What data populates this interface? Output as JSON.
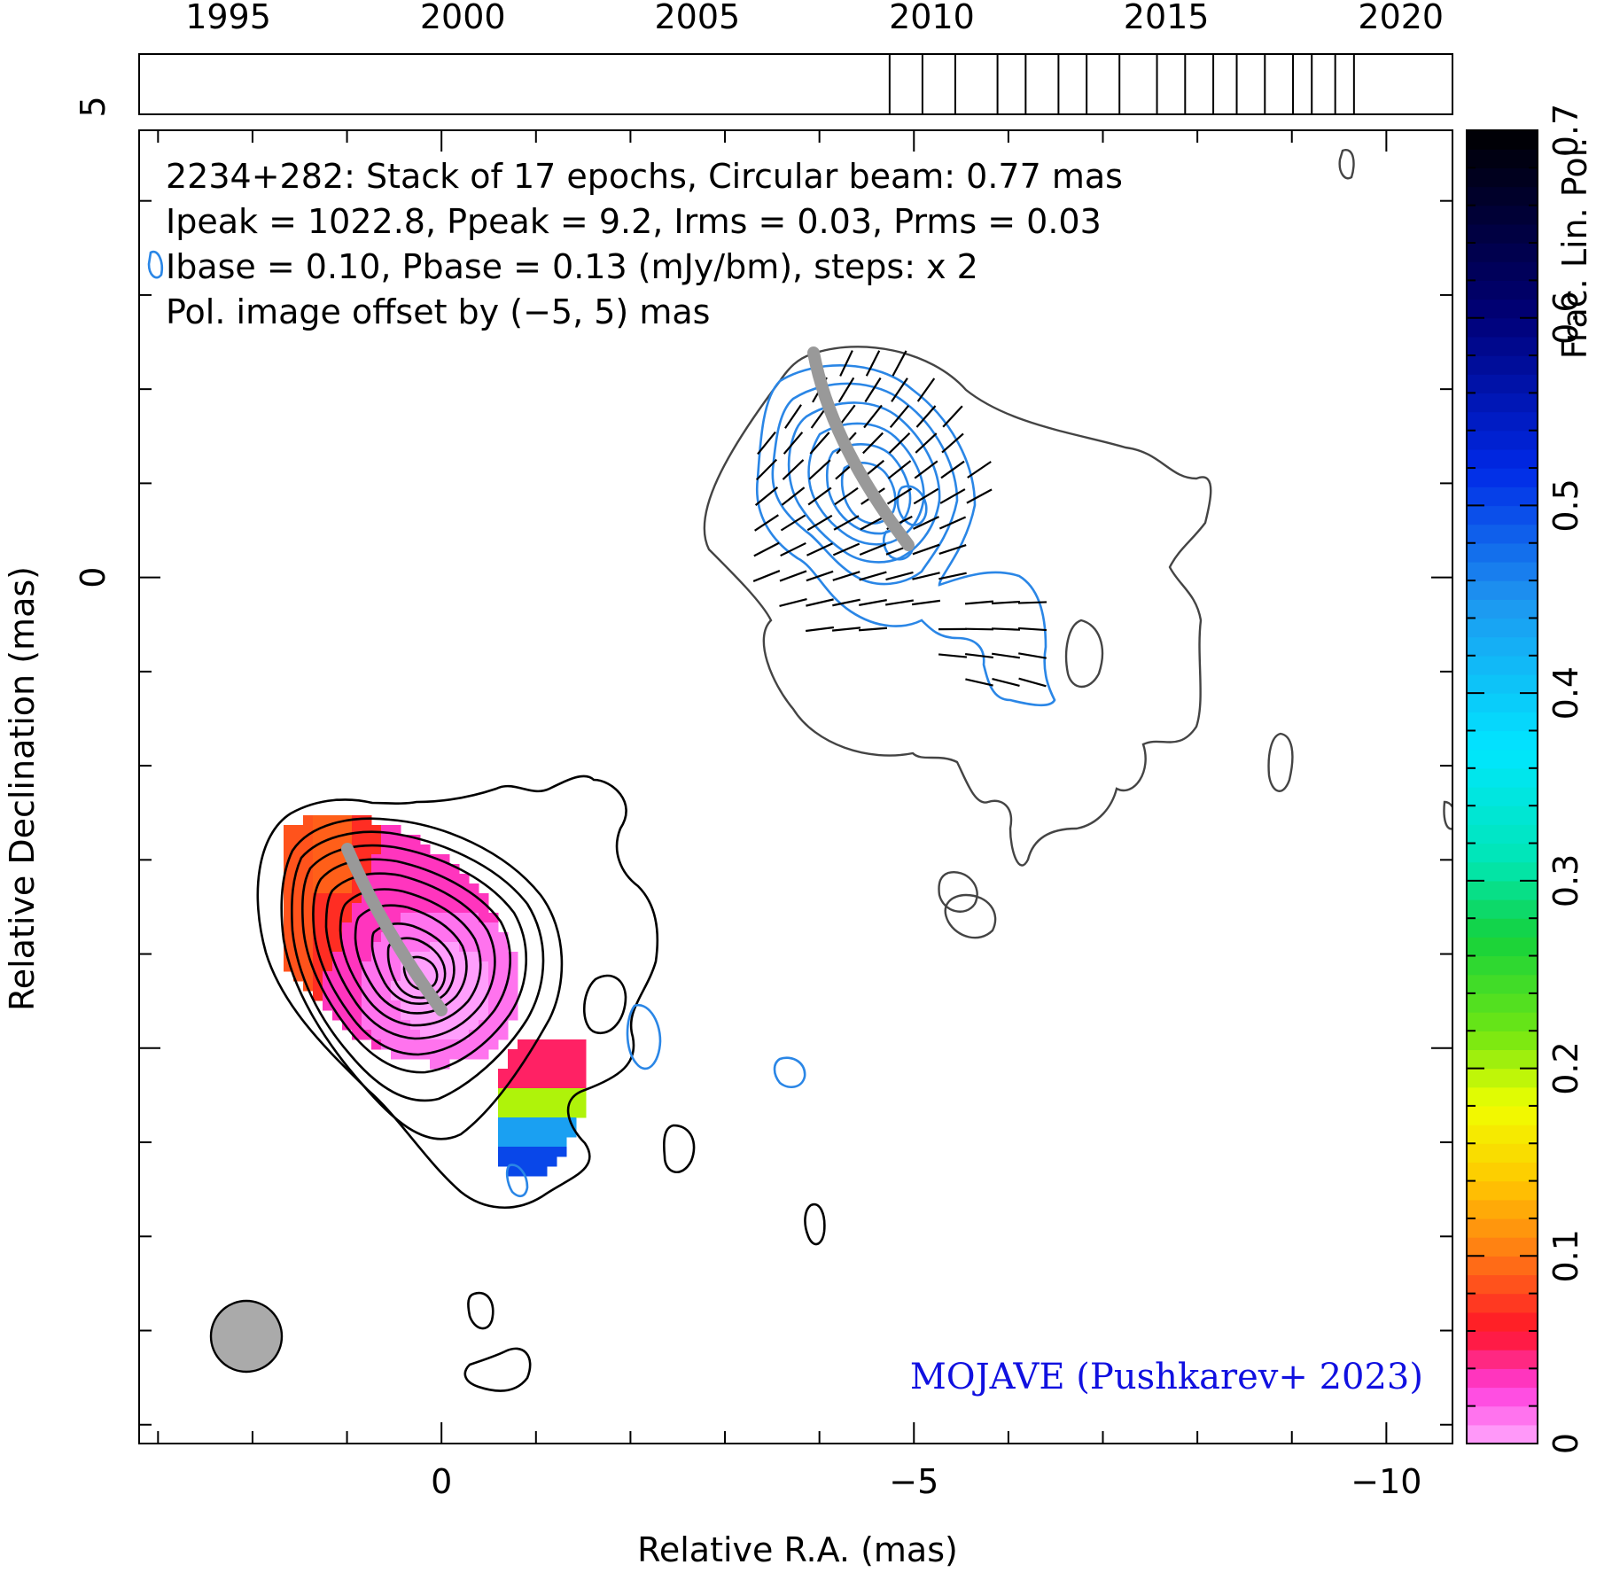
{
  "chart_data": {
    "type": "heatmap",
    "source": "2234+282",
    "info_lines": [
      "2234+282: Stack of 17 epochs, Circular beam: 0.77 mas",
      "Ipeak = 1022.8, Ppeak = 9.2, Irms = 0.03, Prms = 0.03",
      "Ibase = 0.10, Pbase = 0.13 (mJy/bm), steps: x 2"
    ],
    "offset_note": "Pol. image offset by (−5, 5) mas",
    "credit": "MOJAVE (Pushkarev+ 2023)",
    "xlabel": "Relative R.A. (mas)",
    "ylabel": "Relative Declination (mas)",
    "xlim": [
      3.2,
      -10.7
    ],
    "ylim": [
      -9.2,
      4.75
    ],
    "x_ticks": [
      0,
      -5,
      -10
    ],
    "x_tick_labels": [
      "0",
      "−5",
      "−10"
    ],
    "y_ticks": [
      0,
      5
    ],
    "y_tick_labels": [
      "0",
      "5"
    ],
    "timeline": {
      "range": [
        1993.1,
        2021.1
      ],
      "tick_years": [
        1995,
        2000,
        2005,
        2010,
        2015,
        2020
      ],
      "tick_labels": [
        "1995",
        "2000",
        "2005",
        "2010",
        "2015",
        "2020"
      ],
      "epochs": [
        2009.1,
        2009.8,
        2010.5,
        2011.4,
        2012.0,
        2012.7,
        2013.3,
        2014.0,
        2014.8,
        2015.4,
        2016.0,
        2016.5,
        2017.1,
        2017.7,
        2018.1,
        2018.6,
        2019.0
      ]
    },
    "colorbar": {
      "label": "Frac. Lin. Pol.",
      "range": [
        0,
        0.7
      ],
      "tick_values": [
        0,
        0.1,
        0.2,
        0.3,
        0.4,
        0.5,
        0.6,
        0.7
      ],
      "tick_labels": [
        "0",
        "0.1",
        "0.2",
        "0.3",
        "0.4",
        "0.5",
        "0.6",
        "0.7"
      ]
    },
    "beam_diameter_mas": 0.77,
    "colors": {
      "stokes_i_contours": "#000000",
      "pol_contours": "#2a86e6",
      "offset_note": "#2a86e6",
      "credit": "#1010e0",
      "ridge_line": "#999999",
      "beam": "#aaaaaa",
      "outer_contour": "#444444"
    }
  }
}
